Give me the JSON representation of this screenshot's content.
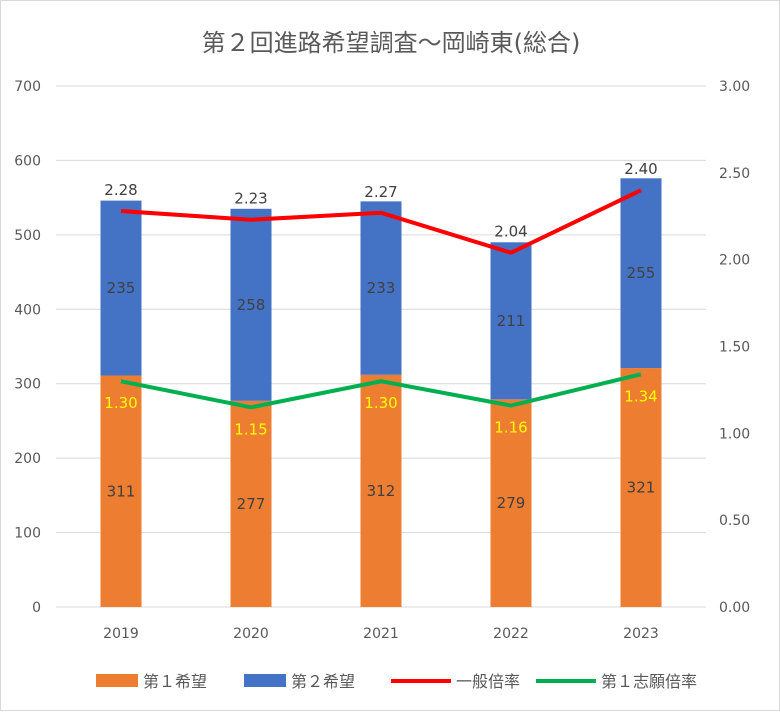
{
  "chart_data": {
    "type": "bar",
    "title": "第２回進路希望調査～岡崎東(総合)",
    "categories": [
      "2019",
      "2020",
      "2021",
      "2022",
      "2023"
    ],
    "series": [
      {
        "name": "第１希望",
        "type": "stacked-bar",
        "axis": "left",
        "color": "#ED7D31",
        "values": [
          311,
          277,
          312,
          279,
          321
        ],
        "labels": [
          "311",
          "277",
          "312",
          "279",
          "321"
        ]
      },
      {
        "name": "第２希望",
        "type": "stacked-bar",
        "axis": "left",
        "color": "#4472C4",
        "values": [
          235,
          258,
          233,
          211,
          255
        ],
        "labels": [
          "235",
          "258",
          "233",
          "211",
          "255"
        ]
      },
      {
        "name": "一般倍率",
        "type": "line",
        "axis": "right",
        "color": "#FF0000",
        "values": [
          2.28,
          2.23,
          2.27,
          2.04,
          2.4
        ],
        "labels": [
          "2.28",
          "2.23",
          "2.27",
          "2.04",
          "2.40"
        ]
      },
      {
        "name": "第１志願倍率",
        "type": "line",
        "axis": "right",
        "color": "#00B050",
        "values": [
          1.3,
          1.15,
          1.3,
          1.16,
          1.34
        ],
        "labels": [
          "1.30",
          "1.15",
          "1.30",
          "1.16",
          "1.34"
        ]
      }
    ],
    "ylim": [
      0,
      700
    ],
    "yticks": [
      "0",
      "100",
      "200",
      "300",
      "400",
      "500",
      "600",
      "700"
    ],
    "y2lim": [
      0,
      3
    ],
    "y2ticks": [
      "0.00",
      "0.50",
      "1.00",
      "1.50",
      "2.00",
      "2.50",
      "3.00"
    ],
    "grid": true,
    "legend": "bottom"
  }
}
